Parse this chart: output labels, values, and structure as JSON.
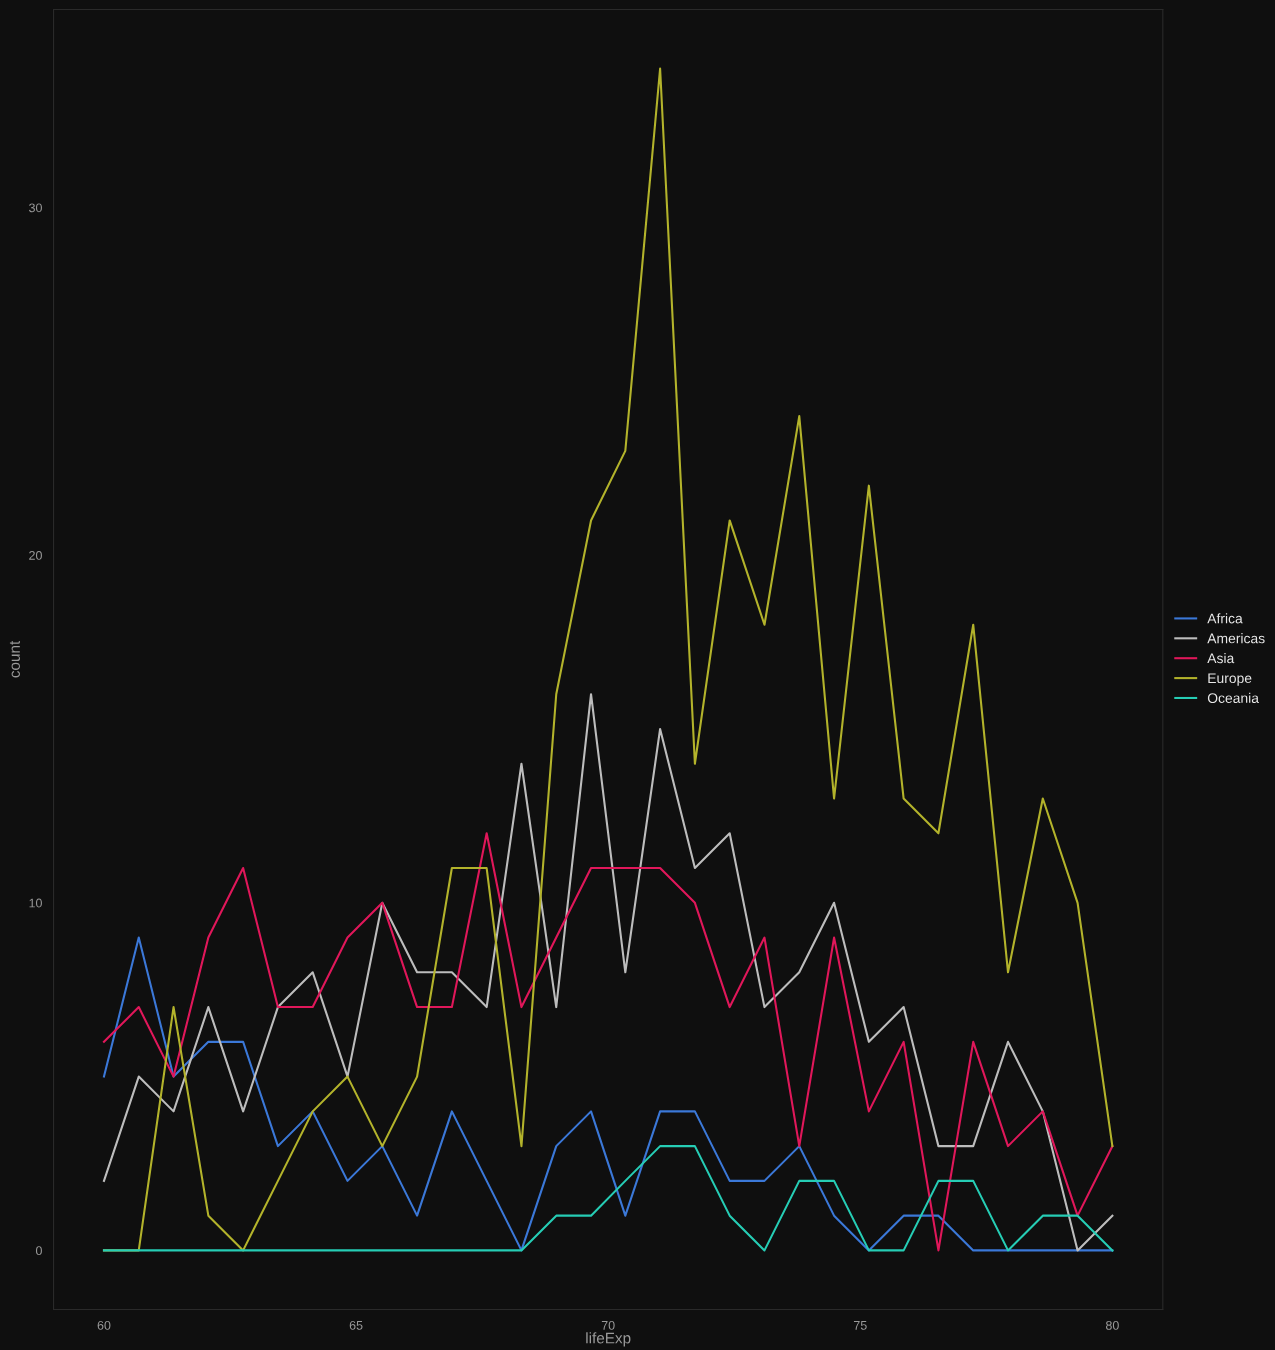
{
  "chart_data": {
    "type": "line",
    "xlabel": "lifeExp",
    "ylabel": "count",
    "x": [
      60,
      60.69,
      61.38,
      62.07,
      62.76,
      63.45,
      64.14,
      64.83,
      65.52,
      66.21,
      66.9,
      67.59,
      68.28,
      68.97,
      69.66,
      70.34,
      71.03,
      71.72,
      72.41,
      73.1,
      73.79,
      74.48,
      75.17,
      75.86,
      76.55,
      77.24,
      77.93,
      78.62,
      79.31,
      80
    ],
    "series": [
      {
        "name": "Africa",
        "color": "#3b78d8",
        "values": [
          5,
          9,
          5,
          6,
          6,
          3,
          4,
          2,
          3,
          1,
          4,
          2,
          0,
          3,
          4,
          1,
          4,
          4,
          2,
          2,
          3,
          1,
          0,
          1,
          1,
          0,
          0,
          0,
          0,
          0
        ]
      },
      {
        "name": "Americas",
        "color": "#bdbdbd",
        "values": [
          2,
          5,
          4,
          7,
          4,
          7,
          8,
          5,
          10,
          8,
          8,
          7,
          14,
          7,
          16,
          8,
          15,
          11,
          12,
          7,
          8,
          10,
          6,
          7,
          3,
          3,
          6,
          4,
          0,
          1
        ]
      },
      {
        "name": "Asia",
        "color": "#e0175a",
        "values": [
          6,
          7,
          5,
          9,
          11,
          7,
          7,
          9,
          10,
          7,
          7,
          12,
          7,
          9,
          11,
          11,
          11,
          10,
          7,
          9,
          3,
          9,
          4,
          6,
          0,
          6,
          3,
          4,
          1,
          3
        ]
      },
      {
        "name": "Europe",
        "color": "#b3b32b",
        "values": [
          0,
          0,
          7,
          1,
          0,
          2,
          4,
          5,
          3,
          5,
          11,
          11,
          3,
          16,
          21,
          23,
          34,
          14,
          21,
          18,
          24,
          13,
          22,
          13,
          12,
          18,
          8,
          13,
          10,
          3
        ]
      },
      {
        "name": "Oceania",
        "color": "#26cdb5",
        "values": [
          0,
          0,
          0,
          0,
          0,
          0,
          0,
          0,
          0,
          0,
          0,
          0,
          0,
          1,
          1,
          2,
          3,
          3,
          1,
          0,
          2,
          2,
          0,
          0,
          2,
          2,
          0,
          1,
          1,
          0
        ]
      }
    ],
    "xlim": [
      59,
      81
    ],
    "ylim": [
      -1.7,
      35.7
    ],
    "xticks": [
      60,
      65,
      70,
      75,
      80
    ],
    "yticks": [
      0,
      10,
      20,
      30
    ],
    "grid": false,
    "legend": "right",
    "line_style": "solid",
    "marker": "none"
  }
}
